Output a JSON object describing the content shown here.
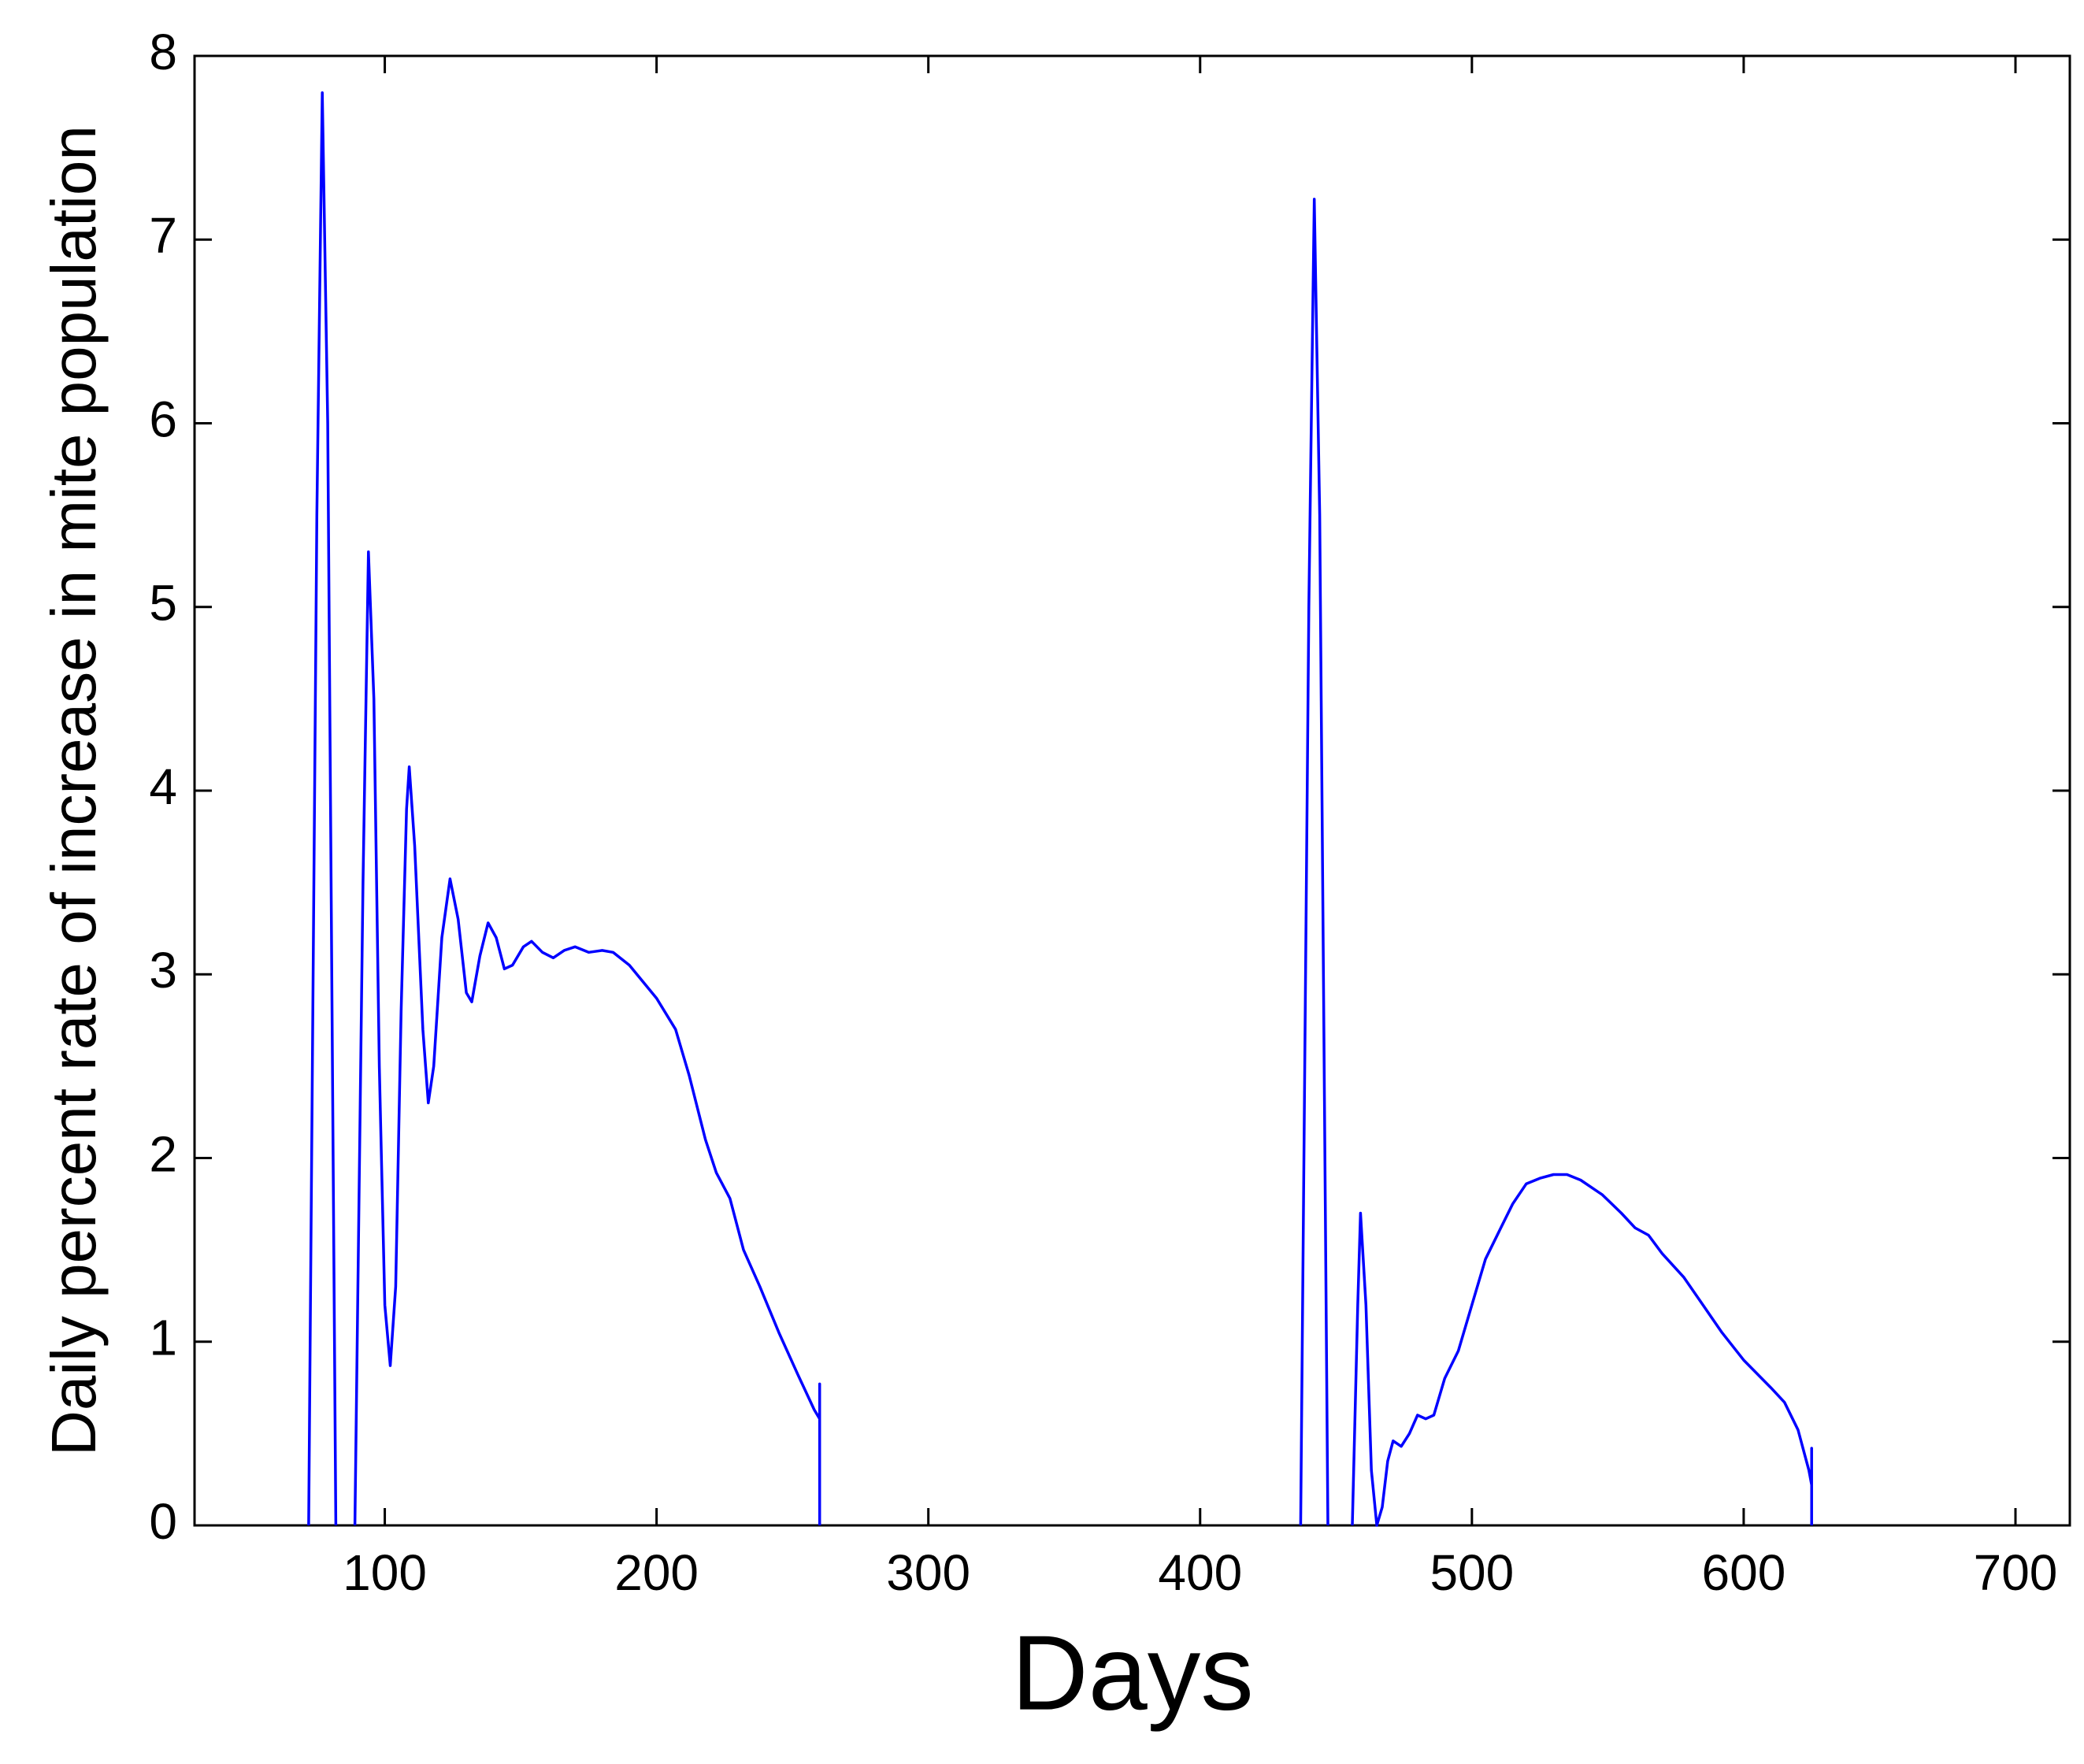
{
  "chart_data": {
    "type": "line",
    "xlabel": "Days",
    "ylabel": "Daily percent rate of increase in mite population",
    "color": "#0000ff",
    "x": [
      72,
      75,
      77,
      79,
      82,
      83,
      89,
      92,
      94,
      96,
      98,
      100,
      102,
      104,
      106,
      108,
      109,
      111,
      114,
      116,
      118,
      121,
      124,
      127,
      130,
      132,
      135,
      138,
      141,
      144,
      147,
      151,
      154,
      158,
      162,
      166,
      170,
      175,
      180,
      184,
      190,
      200,
      207,
      212,
      218,
      222,
      227,
      232,
      238,
      245,
      252,
      258,
      260,
      260,
      260,
      300,
      437,
      440,
      442,
      444,
      447,
      450,
      456,
      458,
      459,
      461,
      463,
      465,
      467,
      469,
      471,
      474,
      477,
      480,
      483,
      486,
      490,
      495,
      500,
      505,
      510,
      515,
      520,
      525,
      530,
      535,
      540,
      548,
      555,
      560,
      565,
      570,
      578,
      585,
      592,
      600,
      610,
      615,
      620,
      624,
      625,
      625,
      625
    ],
    "values": [
      0,
      5.5,
      7.8,
      6,
      0,
      null,
      0,
      3.5,
      5.3,
      4.5,
      2.5,
      1.2,
      0.87,
      1.3,
      2.8,
      3.9,
      4.13,
      3.7,
      2.7,
      2.3,
      2.5,
      3.2,
      3.52,
      3.3,
      2.9,
      2.85,
      3.1,
      3.28,
      3.2,
      3.03,
      3.05,
      3.15,
      3.18,
      3.12,
      3.09,
      3.13,
      3.15,
      3.12,
      3.13,
      3.12,
      3.05,
      2.87,
      2.7,
      2.45,
      2.1,
      1.92,
      1.78,
      1.5,
      1.3,
      1.05,
      0.82,
      0.63,
      0.58,
      0.77,
      0,
      null,
      0,
      5,
      7.22,
      5.5,
      0,
      null,
      0,
      1.2,
      1.7,
      1.2,
      0.3,
      0,
      0.1,
      0.35,
      0.46,
      0.43,
      0.5,
      0.6,
      0.58,
      0.6,
      0.8,
      0.95,
      1.2,
      1.45,
      1.6,
      1.75,
      1.86,
      1.89,
      1.91,
      1.91,
      1.88,
      1.8,
      1.7,
      1.62,
      1.58,
      1.48,
      1.35,
      1.2,
      1.05,
      0.9,
      0.75,
      0.67,
      0.52,
      0.3,
      0.22,
      0.42,
      0
    ],
    "xlim": [
      30,
      720
    ],
    "xticks": [
      100,
      200,
      300,
      400,
      500,
      600,
      700
    ],
    "ylim": [
      0,
      8
    ],
    "yticks": [
      0,
      1,
      2,
      3,
      4,
      5,
      6,
      7,
      8
    ]
  }
}
